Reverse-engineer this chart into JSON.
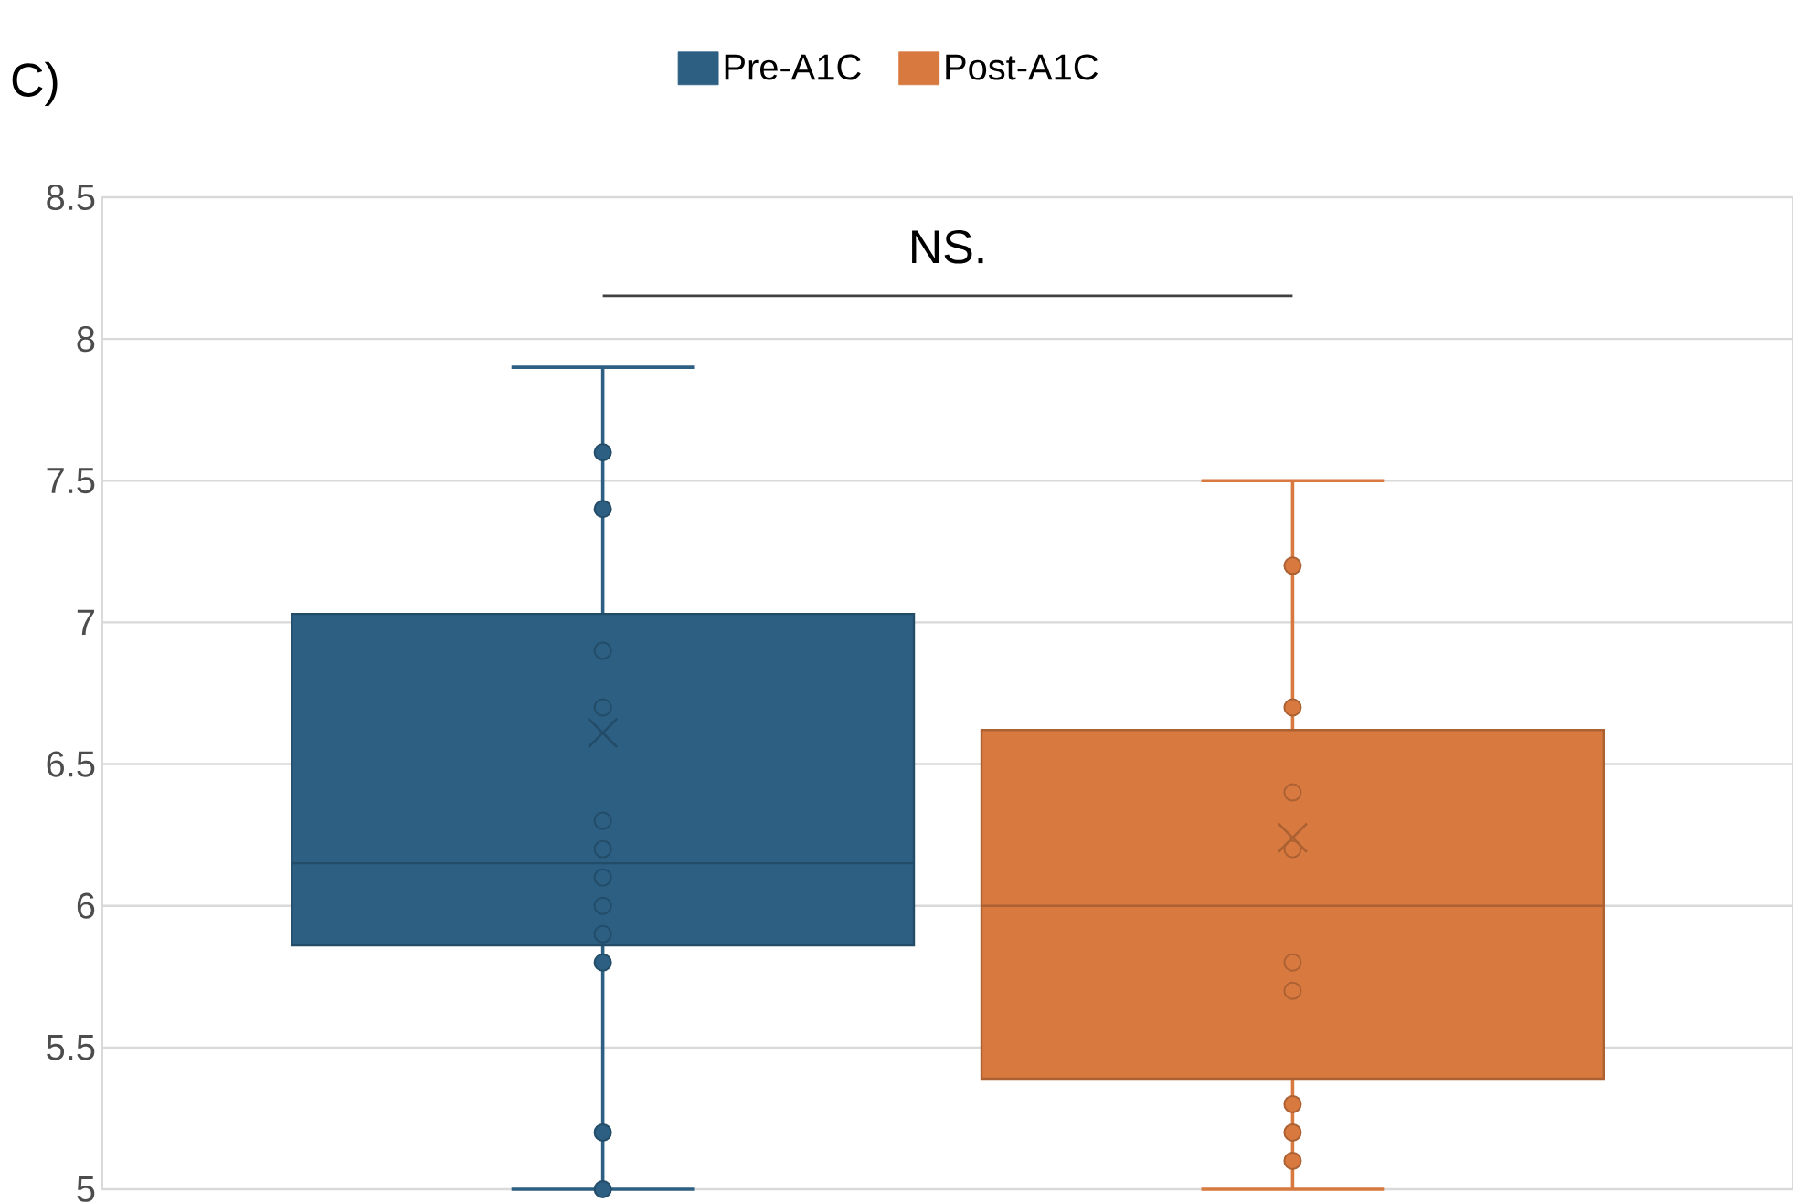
{
  "chart_data": {
    "type": "box",
    "title": "C)",
    "categories": [
      null
    ],
    "series": [
      {
        "name": "Pre-A1C",
        "color": "#2c5f82",
        "boxes": [
          {
            "low": 5.0,
            "q1": 5.86,
            "median": 6.15,
            "q3": 7.03,
            "high": 7.9,
            "mean": 6.61,
            "outliers": [
              7.6,
              7.4,
              6.9,
              6.7,
              6.3,
              6.2,
              6.1,
              6.0,
              5.9,
              5.8,
              5.2,
              5.0
            ]
          }
        ]
      },
      {
        "name": "Post-A1C",
        "color": "#d87a40",
        "boxes": [
          {
            "low": 5.0,
            "q1": 5.39,
            "median": 6.0,
            "q3": 6.62,
            "high": 7.5,
            "mean": 6.24,
            "outliers": [
              7.2,
              6.7,
              6.4,
              6.2,
              5.8,
              5.7,
              5.3,
              5.2,
              5.1
            ]
          }
        ]
      }
    ],
    "ylim": [
      5,
      8.5
    ],
    "yticks": [
      5,
      5.5,
      6,
      6.5,
      7,
      7.5,
      8,
      8.5
    ],
    "annotations": [
      "NS."
    ],
    "grid": "y",
    "legend": "top",
    "marker": "circle"
  }
}
